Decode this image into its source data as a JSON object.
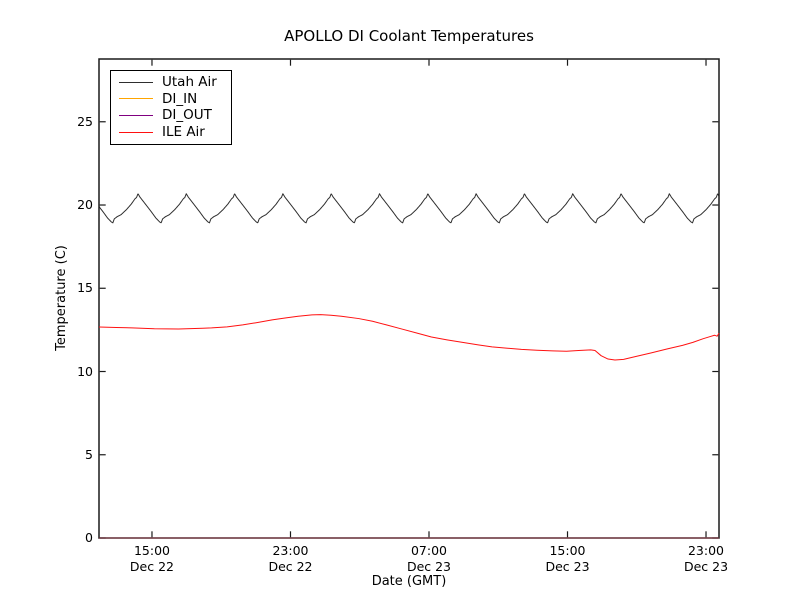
{
  "chart_data": {
    "type": "line",
    "title": "APOLLO DI Coolant Temperatures",
    "xlabel": "Date (GMT)",
    "ylabel": "Temperature (C)",
    "background_color": "#ffffff",
    "axes_color": "#1a1a1a",
    "grid": false,
    "x_axis": {
      "unit": "hours from left edge",
      "range_hours": [
        0,
        35.81
      ],
      "ticks": [
        {
          "hour": 3.06,
          "time": "15:00",
          "date": "Dec 22"
        },
        {
          "hour": 11.06,
          "time": "23:00",
          "date": "Dec 22"
        },
        {
          "hour": 19.06,
          "time": "07:00",
          "date": "Dec 23"
        },
        {
          "hour": 27.06,
          "time": "15:00",
          "date": "Dec 23"
        },
        {
          "hour": 35.06,
          "time": "23:00",
          "date": "Dec 23"
        }
      ]
    },
    "y_axis": {
      "range": [
        0,
        28.77
      ],
      "ticks": [
        0,
        5,
        10,
        15,
        20,
        25
      ]
    },
    "legend": {
      "position": "upper left",
      "entries": [
        "Utah Air",
        "DI_IN",
        "DI_OUT",
        "ILE Air"
      ]
    },
    "series": [
      {
        "name": "Utah Air",
        "color": "#2e2e2e",
        "render": "cyclic",
        "period_hours": 2.79,
        "first_min_hour": 0.8,
        "cycle_shape": [
          [
            0.0,
            18.93
          ],
          [
            0.03,
            19.17
          ],
          [
            0.09,
            19.3
          ],
          [
            0.17,
            19.42
          ],
          [
            0.28,
            19.72
          ],
          [
            0.38,
            20.05
          ],
          [
            0.46,
            20.38
          ],
          [
            0.49,
            20.45
          ],
          [
            0.52,
            20.68
          ],
          [
            0.56,
            20.48
          ],
          [
            0.63,
            20.22
          ],
          [
            0.71,
            19.92
          ],
          [
            0.8,
            19.58
          ],
          [
            0.89,
            19.22
          ],
          [
            0.97,
            18.98
          ],
          [
            1.0,
            18.93
          ]
        ]
      },
      {
        "name": "DI_IN",
        "color": "#ffa500",
        "render": "constant",
        "value": 0,
        "draw_opacity": 0.5
      },
      {
        "name": "DI_OUT",
        "color": "#800080",
        "render": "constant",
        "value": 0,
        "draw_opacity": 0.45
      },
      {
        "name": "ILE Air",
        "color": "#ff1111",
        "render": "points",
        "points": [
          [
            0,
            12.67
          ],
          [
            1.0,
            12.64
          ],
          [
            1.9,
            12.62
          ],
          [
            3.2,
            12.57
          ],
          [
            4.6,
            12.55
          ],
          [
            6.0,
            12.6
          ],
          [
            6.5,
            12.62
          ],
          [
            7.4,
            12.68
          ],
          [
            8.3,
            12.8
          ],
          [
            9.2,
            12.95
          ],
          [
            10.0,
            13.1
          ],
          [
            10.8,
            13.22
          ],
          [
            11.5,
            13.32
          ],
          [
            12.3,
            13.4
          ],
          [
            12.8,
            13.42
          ],
          [
            13.4,
            13.38
          ],
          [
            14.0,
            13.32
          ],
          [
            15.0,
            13.18
          ],
          [
            15.8,
            13.02
          ],
          [
            16.6,
            12.8
          ],
          [
            17.5,
            12.55
          ],
          [
            18.4,
            12.3
          ],
          [
            19.2,
            12.07
          ],
          [
            20.1,
            11.9
          ],
          [
            21.0,
            11.75
          ],
          [
            21.9,
            11.6
          ],
          [
            22.7,
            11.48
          ],
          [
            23.6,
            11.4
          ],
          [
            24.4,
            11.33
          ],
          [
            25.3,
            11.28
          ],
          [
            26.2,
            11.24
          ],
          [
            27.0,
            11.22
          ],
          [
            27.7,
            11.26
          ],
          [
            28.4,
            11.3
          ],
          [
            28.65,
            11.26
          ],
          [
            29.0,
            10.95
          ],
          [
            29.4,
            10.75
          ],
          [
            29.8,
            10.69
          ],
          [
            30.3,
            10.73
          ],
          [
            31.0,
            10.9
          ],
          [
            31.9,
            11.12
          ],
          [
            32.8,
            11.35
          ],
          [
            33.7,
            11.57
          ],
          [
            34.3,
            11.75
          ],
          [
            34.9,
            11.97
          ],
          [
            35.3,
            12.1
          ],
          [
            35.55,
            12.18
          ],
          [
            35.7,
            12.12
          ],
          [
            35.81,
            12.3
          ]
        ]
      }
    ]
  }
}
